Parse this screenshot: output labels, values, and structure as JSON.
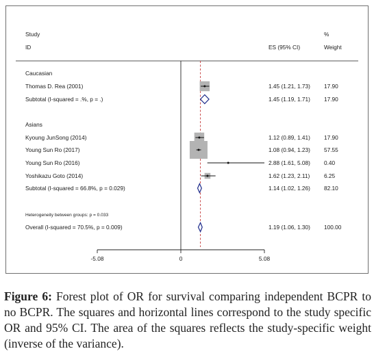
{
  "chart_data": {
    "type": "forest",
    "header": {
      "col1_line1": "Study",
      "col1_line2": "ID",
      "es_col": "ES (95% CI)",
      "weight_col_line1": "%",
      "weight_col_line2": "Weight"
    },
    "x_ticks": [
      {
        "value": -5.08,
        "label": "-5.08"
      },
      {
        "value": 0,
        "label": "0"
      },
      {
        "value": 5.08,
        "label": "5.08"
      }
    ],
    "xlim": [
      -5.08,
      5.08
    ],
    "null_line": 0,
    "overall_line": 1.19,
    "rows": [
      {
        "kind": "group",
        "label": "Caucasian"
      },
      {
        "kind": "study",
        "label": "Thomas D. Rea (2001)",
        "es": 1.45,
        "lo": 1.21,
        "hi": 1.73,
        "es_text": "1.45 (1.21, 1.73)",
        "weight": 17.9,
        "weight_text": "17.90"
      },
      {
        "kind": "subtotal",
        "label": "Subtotal  (I-squared = .%, p = .)",
        "es": 1.45,
        "lo": 1.19,
        "hi": 1.71,
        "es_text": "1.45 (1.19, 1.71)",
        "weight_text": "17.90"
      },
      {
        "kind": "blank"
      },
      {
        "kind": "group",
        "label": "Asians"
      },
      {
        "kind": "study",
        "label": "Kyoung JunSong (2014)",
        "es": 1.12,
        "lo": 0.89,
        "hi": 1.41,
        "es_text": "1.12 (0.89, 1.41)",
        "weight": 17.9,
        "weight_text": "17.90"
      },
      {
        "kind": "study",
        "label": "Young Sun Ro (2017)",
        "es": 1.08,
        "lo": 0.94,
        "hi": 1.23,
        "es_text": "1.08 (0.94, 1.23)",
        "weight": 57.55,
        "weight_text": "57.55"
      },
      {
        "kind": "study",
        "label": "Young Sun Ro (2016)",
        "es": 2.88,
        "lo": 1.61,
        "hi": 5.08,
        "es_text": "2.88 (1.61, 5.08)",
        "weight": 0.4,
        "weight_text": "0.40"
      },
      {
        "kind": "study",
        "label": "Yoshikazu Goto (2014)",
        "es": 1.62,
        "lo": 1.23,
        "hi": 2.11,
        "es_text": "1.62 (1.23, 2.11)",
        "weight": 6.25,
        "weight_text": "6.25"
      },
      {
        "kind": "subtotal",
        "label": "Subtotal  (I-squared = 66.8%, p = 0.029)",
        "es": 1.14,
        "lo": 1.02,
        "hi": 1.26,
        "es_text": "1.14 (1.02, 1.26)",
        "weight_text": "82.10"
      },
      {
        "kind": "blank"
      },
      {
        "kind": "note",
        "label": "Heterogeneity between groups: p = 0.033"
      },
      {
        "kind": "overall",
        "label": "Overall  (I-squared = 70.5%, p = 0.009)",
        "es": 1.19,
        "lo": 1.06,
        "hi": 1.3,
        "es_text": "1.19 (1.06, 1.30)",
        "weight_text": "100.00"
      }
    ]
  },
  "caption": {
    "label": "Figure 6:",
    "text": " Forest plot of OR for survival comparing independent BCPR to no BCPR. The squares and horizontal lines correspond to the study specific OR and 95% CI. The area of the squares reflects the study-specific weight (inverse of the variance)."
  }
}
